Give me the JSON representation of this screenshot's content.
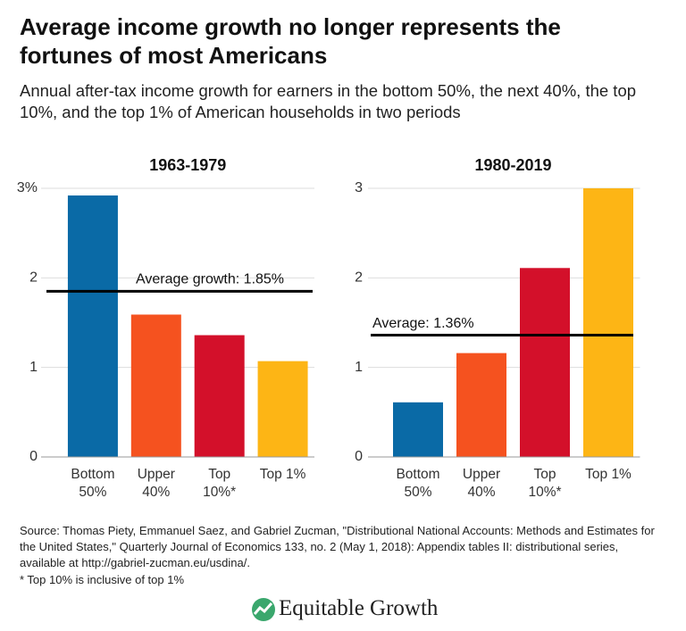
{
  "title": "Average income growth no longer represents the fortunes of most Americans",
  "subtitle": "Annual after-tax income growth for earners in the bottom 50%, the next 40%, the top 10%, and the top 1% of American households in two periods",
  "source": "Source: Thomas Piety, Emmanuel Saez, and Gabriel Zucman, \"Distributional National Accounts: Methods and Estimates for the United States,\" Quarterly Journal of Economics 133, no. 2 (May 1, 2018): Appendix tables II: distributional series, available at http://gabriel-zucman.eu/usdina/.",
  "footnote": "* Top 10% is inclusive of top 1%",
  "brand": "Equitable Growth",
  "chart_data": [
    {
      "type": "bar",
      "title": "1963-1979",
      "categories": [
        "Bottom 50%",
        "Upper 40%",
        "Top 10%*",
        "Top 1%"
      ],
      "values": [
        2.92,
        1.59,
        1.36,
        1.07
      ],
      "colors": [
        "#0a6aa6",
        "#f5521f",
        "#d3102a",
        "#fdb515"
      ],
      "ylim": [
        0,
        3
      ],
      "yticks": [
        0,
        1,
        2,
        {
          "value": 3,
          "label": "3%"
        }
      ],
      "grid": true,
      "average": {
        "value": 1.85,
        "label": "Average growth: 1.85%"
      }
    },
    {
      "type": "bar",
      "title": "1980-2019",
      "categories": [
        "Bottom 50%",
        "Upper 40%",
        "Top 10%*",
        "Top 1%"
      ],
      "values": [
        0.61,
        1.16,
        2.11,
        3.0
      ],
      "colors": [
        "#0a6aa6",
        "#f5521f",
        "#d3102a",
        "#fdb515"
      ],
      "ylim": [
        0,
        3
      ],
      "yticks": [
        0,
        1,
        2,
        3
      ],
      "grid": true,
      "average": {
        "value": 1.36,
        "label": "Average: 1.36%"
      }
    }
  ]
}
